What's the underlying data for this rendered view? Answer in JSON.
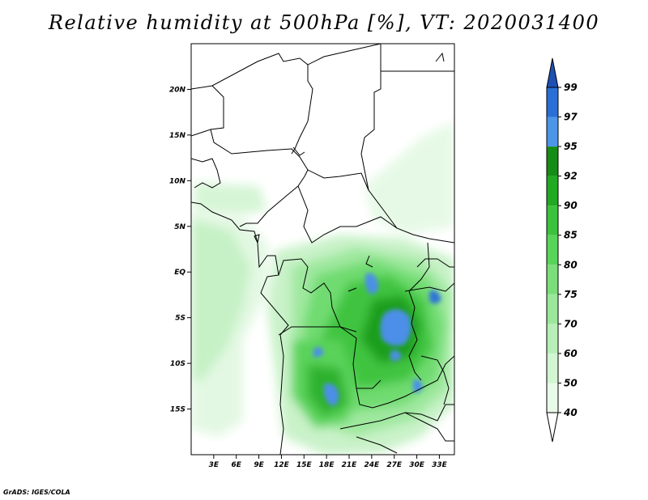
{
  "title": "Relative humidity at 500hPa [%], VT: 2020031400",
  "credit": "GrADS: IGES/COLA",
  "map": {
    "lon_range": [
      0,
      35
    ],
    "lat_range": [
      -20,
      25
    ],
    "lon_ticks": [
      "3E",
      "6E",
      "9E",
      "12E",
      "15E",
      "18E",
      "21E",
      "24E",
      "27E",
      "30E",
      "33E"
    ],
    "lat_ticks": [
      "20N",
      "15N",
      "10N",
      "5N",
      "EQ",
      "5S",
      "10S",
      "15S"
    ]
  },
  "colorbar": {
    "levels": [
      "40",
      "50",
      "60",
      "70",
      "75",
      "80",
      "85",
      "90",
      "92",
      "95",
      "97",
      "99"
    ],
    "colors": [
      "#ffffff",
      "#e8fae8",
      "#d2f5d2",
      "#b8efb8",
      "#9ae79a",
      "#7ade7a",
      "#58d458",
      "#3cc23c",
      "#22a922",
      "#158c15",
      "#4b96e6",
      "#2a6fd6",
      "#1e50b4"
    ]
  }
}
